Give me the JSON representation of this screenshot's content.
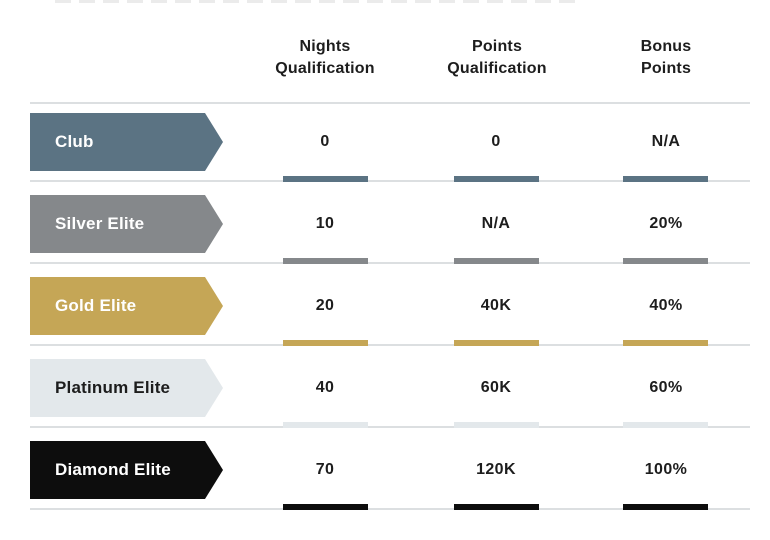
{
  "header": {
    "columns": [
      {
        "label": "Nights\nQualification"
      },
      {
        "label": "Points\nQualification"
      },
      {
        "label": "Bonus\nPoints"
      }
    ]
  },
  "table": {
    "rows": [
      {
        "tier": "Club",
        "color": "#5b7383",
        "text_color": "#ffffff",
        "nights": "0",
        "points": "0",
        "bonus": "N/A"
      },
      {
        "tier": "Silver Elite",
        "color": "#85888b",
        "text_color": "#ffffff",
        "nights": "10",
        "points": "N/A",
        "bonus": "20%"
      },
      {
        "tier": "Gold Elite",
        "color": "#c5a656",
        "text_color": "#ffffff",
        "nights": "20",
        "points": "40K",
        "bonus": "40%"
      },
      {
        "tier": "Platinum Elite",
        "color": "#e3e8eb",
        "text_color": "#1d1d1d",
        "nights": "40",
        "points": "60K",
        "bonus": "60%"
      },
      {
        "tier": "Diamond Elite",
        "color": "#0d0d0d",
        "text_color": "#ffffff",
        "nights": "70",
        "points": "120K",
        "bonus": "100%"
      }
    ]
  },
  "colors": {
    "rule": "#dcdfe1",
    "heading_text": "#1d1d1d"
  },
  "chart_data": {
    "type": "table",
    "columns": [
      "",
      "Nights Qualification",
      "Points Qualification",
      "Bonus Points"
    ],
    "rows": [
      [
        "Club",
        "0",
        "0",
        "N/A"
      ],
      [
        "Silver Elite",
        "10",
        "N/A",
        "20%"
      ],
      [
        "Gold Elite",
        "20",
        "40K",
        "40%"
      ],
      [
        "Platinum Elite",
        "40",
        "60K",
        "60%"
      ],
      [
        "Diamond Elite",
        "70",
        "120K",
        "100%"
      ]
    ],
    "layout": "tier arrow banners in first column; short colored underline bar beneath each value; thin light separator line after every row"
  }
}
